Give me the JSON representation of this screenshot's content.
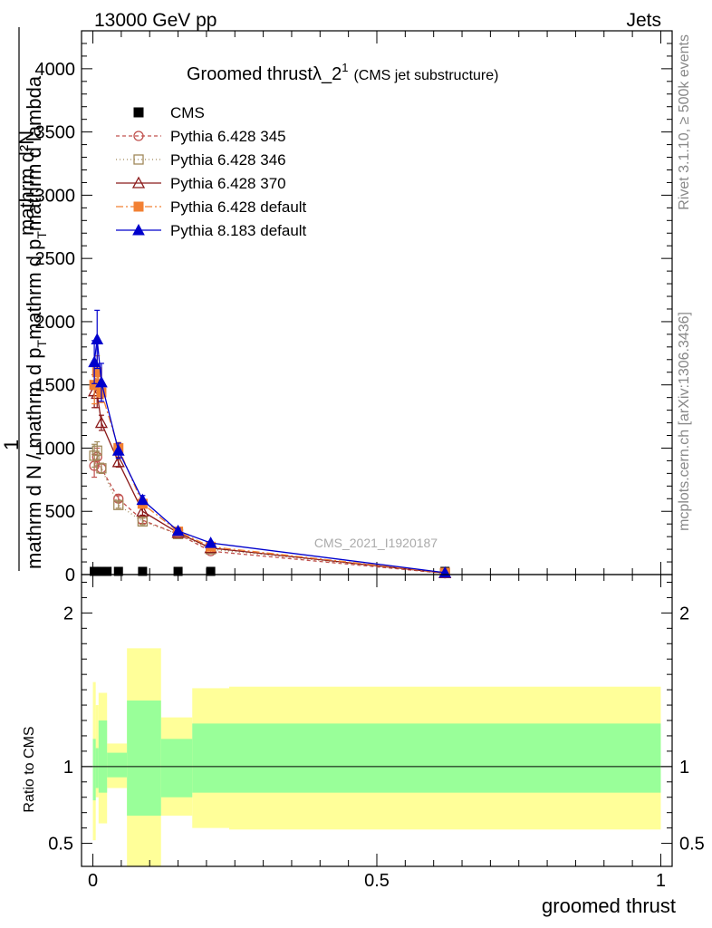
{
  "header": {
    "energy_label": "13000 GeV pp",
    "process_label": "Jets"
  },
  "side_labels": {
    "rivet": "Rivet 3.1.10, ≥ 500k events",
    "source": "mcplots.cern.ch [arXiv:1306.3436]"
  },
  "analysis_tag": "CMS_2021_I1920187",
  "chart_data": [
    {
      "type": "line",
      "title_main": "Groomed thrustλ_2",
      "title_sup": "1",
      "title_sub": "(CMS jet substructure)",
      "xlabel": "groomed thrust",
      "ylabel": {
        "numerator": "mathrm d²N",
        "prefix": "1",
        "denominator": "mathrm d N / mathrm d p",
        "denominator_sub": "T",
        "denominator_tail": "mathrm d p",
        "denominator_sub2": "T",
        "denominator_end": "mathrm d lambda"
      },
      "xlim": [
        -0.02,
        1.02
      ],
      "ylim": [
        0,
        4300
      ],
      "x_ticks": [
        0,
        0.5,
        1
      ],
      "x_tick_labels": [
        "0",
        "0.5",
        "1"
      ],
      "y_ticks": [
        500,
        1000,
        1500,
        2000,
        2500,
        3000,
        3500,
        4000
      ],
      "y_tick_labels": [
        "500",
        "1000",
        "1500",
        "2000",
        "2500",
        "3000",
        "3500",
        "4000"
      ],
      "series": [
        {
          "name": "CMS",
          "color": "#000000",
          "marker": "square-filled",
          "dash": "none",
          "x": [
            0.0025,
            0.0075,
            0.015,
            0.025,
            0.045,
            0.0875,
            0.15,
            0.2075,
            0.62
          ],
          "y": [
            18,
            18,
            18,
            18,
            18,
            18,
            18,
            18,
            18
          ],
          "yerr": []
        },
        {
          "name": "Pythia 6.428 345",
          "color": "#c0504d",
          "marker": "circle-open",
          "dash": "4,3",
          "x": [
            0.0025,
            0.0075,
            0.015,
            0.045,
            0.0875,
            0.15,
            0.2075,
            0.62
          ],
          "y": [
            860,
            930,
            840,
            600,
            430,
            320,
            185,
            10
          ],
          "yerr": [
            90,
            70,
            40,
            25,
            25,
            15,
            10,
            3
          ]
        },
        {
          "name": "Pythia 6.428 346",
          "color": "#a0895a",
          "marker": "square-open",
          "dash": "1,3",
          "x": [
            0.0025,
            0.0075,
            0.015,
            0.045,
            0.0875,
            0.15,
            0.2075,
            0.62
          ],
          "y": [
            940,
            980,
            840,
            550,
            420,
            320,
            200,
            12
          ],
          "yerr": [
            90,
            70,
            40,
            25,
            25,
            15,
            10,
            3
          ]
        },
        {
          "name": "Pythia 6.428 370",
          "color": "#8b1a1a",
          "marker": "triangle-open",
          "dash": "none",
          "x": [
            0.0025,
            0.0075,
            0.015,
            0.045,
            0.0875,
            0.15,
            0.2075,
            0.62
          ],
          "y": [
            1450,
            1430,
            1200,
            890,
            500,
            330,
            210,
            12
          ],
          "yerr": [
            130,
            110,
            60,
            40,
            30,
            15,
            10,
            3
          ]
        },
        {
          "name": "Pythia 6.428 default",
          "color": "#f28033",
          "marker": "square-filled",
          "dash": "8,3,2,3",
          "x": [
            0.0025,
            0.0075,
            0.015,
            0.045,
            0.0875,
            0.15,
            0.2075,
            0.62
          ],
          "y": [
            1500,
            1600,
            1440,
            1000,
            560,
            340,
            220,
            14
          ],
          "yerr": [
            150,
            130,
            80,
            45,
            30,
            15,
            10,
            3
          ]
        },
        {
          "name": "Pythia 8.183 default",
          "color": "#0000cc",
          "marker": "triangle-filled",
          "dash": "none",
          "x": [
            0.0025,
            0.0075,
            0.015,
            0.045,
            0.0875,
            0.15,
            0.2075,
            0.62
          ],
          "y": [
            1680,
            1860,
            1520,
            980,
            590,
            345,
            250,
            15
          ],
          "yerr": [
            170,
            230,
            150,
            60,
            35,
            20,
            12,
            3
          ]
        }
      ]
    },
    {
      "type": "area",
      "ylabel": "Ratio to CMS",
      "xlim": [
        -0.02,
        1.02
      ],
      "ylim": [
        0.35,
        2.25
      ],
      "reference": 1,
      "y_ticks": [
        0.5,
        1,
        2
      ],
      "y_tick_labels": [
        "0.5",
        "1",
        "2"
      ],
      "y_minor_ticks": [
        0.6,
        0.7,
        0.8,
        0.9,
        1.1,
        1.2,
        1.3,
        1.4,
        1.5,
        1.6,
        1.7,
        1.8,
        1.9,
        2.1,
        2.2
      ],
      "bands": [
        {
          "name": "total uncertainty",
          "color": "#ffff99",
          "bins": [
            {
              "x0": 0.0,
              "x1": 0.005,
              "lo": 0.52,
              "hi": 1.55
            },
            {
              "x0": 0.005,
              "x1": 0.01,
              "lo": 0.8,
              "hi": 1.4
            },
            {
              "x0": 0.01,
              "x1": 0.025,
              "lo": 0.63,
              "hi": 1.48
            },
            {
              "x0": 0.025,
              "x1": 0.06,
              "lo": 0.86,
              "hi": 1.15
            },
            {
              "x0": 0.06,
              "x1": 0.12,
              "lo": 0.35,
              "hi": 1.77
            },
            {
              "x0": 0.12,
              "x1": 0.175,
              "lo": 0.68,
              "hi": 1.32
            },
            {
              "x0": 0.175,
              "x1": 0.24,
              "lo": 0.6,
              "hi": 1.51
            },
            {
              "x0": 0.24,
              "x1": 1.0,
              "lo": 0.59,
              "hi": 1.52
            }
          ]
        },
        {
          "name": "statistical uncertainty",
          "color": "#99ff99",
          "bins": [
            {
              "x0": 0.0,
              "x1": 0.005,
              "lo": 0.78,
              "hi": 1.18
            },
            {
              "x0": 0.005,
              "x1": 0.01,
              "lo": 0.86,
              "hi": 1.12
            },
            {
              "x0": 0.01,
              "x1": 0.025,
              "lo": 0.83,
              "hi": 1.3
            },
            {
              "x0": 0.025,
              "x1": 0.06,
              "lo": 0.93,
              "hi": 1.09
            },
            {
              "x0": 0.06,
              "x1": 0.12,
              "lo": 0.68,
              "hi": 1.43
            },
            {
              "x0": 0.12,
              "x1": 0.175,
              "lo": 0.8,
              "hi": 1.18
            },
            {
              "x0": 0.175,
              "x1": 0.24,
              "lo": 0.83,
              "hi": 1.28
            },
            {
              "x0": 0.24,
              "x1": 1.0,
              "lo": 0.83,
              "hi": 1.28
            }
          ]
        }
      ]
    }
  ]
}
